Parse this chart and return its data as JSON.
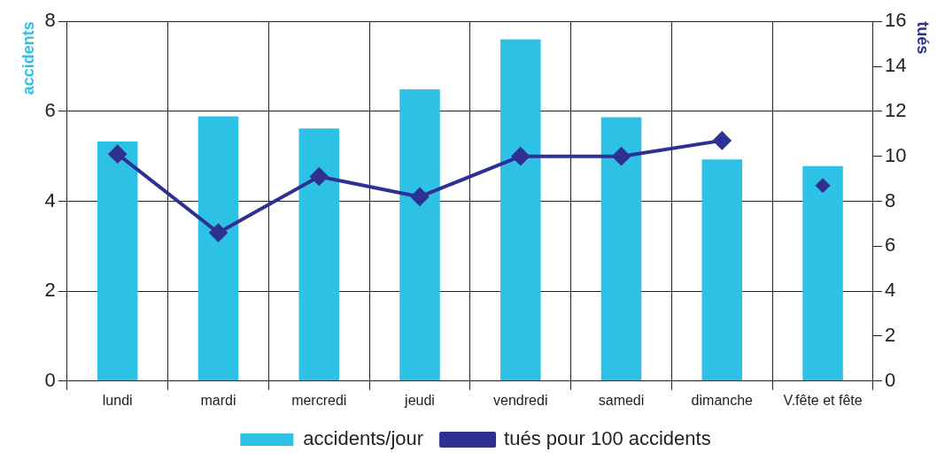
{
  "chart_data": {
    "type": "bar",
    "ylabel": "accidents",
    "y2label": "tués",
    "categories": [
      "lundi",
      "mardi",
      "mercredi",
      "jeudi",
      "vendredi",
      "samedi",
      "dimanche",
      "V.fête et fête"
    ],
    "series": [
      {
        "name": "accidents/jour",
        "color": "#2ec1e6",
        "values": [
          5.33,
          5.89,
          5.62,
          6.49,
          7.6,
          5.87,
          4.93,
          4.78
        ]
      },
      {
        "name": "tués pour 100 accidents",
        "type": "line",
        "axis": "y2",
        "color": "#2e3192",
        "values": [
          10.1,
          6.6,
          9.1,
          8.2,
          10.0,
          10.0,
          10.7,
          null
        ]
      },
      {
        "type": "scatter",
        "axis": "y2",
        "color": "#2e3192",
        "x": [
          "V.fête et fête"
        ],
        "values": [
          8.7
        ]
      }
    ],
    "ylim": [
      0,
      8
    ],
    "yticks": [
      0,
      2,
      4,
      6,
      8
    ],
    "y2lim": [
      0,
      16
    ],
    "y2ticks": [
      0,
      2,
      4,
      6,
      8,
      10,
      12,
      14,
      16
    ],
    "grid": true,
    "legend": "bottom",
    "marker": "diamond",
    "line_style": "solid"
  }
}
